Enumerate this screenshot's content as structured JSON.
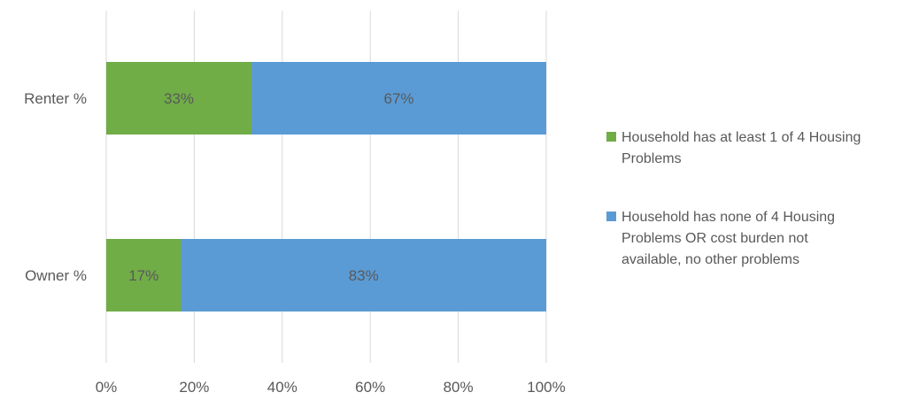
{
  "chart_data": {
    "type": "bar",
    "orientation": "horizontal",
    "stacked": true,
    "categories": [
      "Renter %",
      "Owner %"
    ],
    "series": [
      {
        "name": "Household has at least 1 of 4 Housing Problems",
        "name_lines": [
          "Household has at least 1 of 4 Housing",
          "Problems"
        ],
        "values": [
          33,
          17
        ],
        "data_labels": [
          "33%",
          "17%"
        ],
        "color": "#70ad47"
      },
      {
        "name": "Household has none of 4 Housing Problems OR cost burden not available, no other problems",
        "name_lines": [
          "Household has none of 4 Housing",
          "Problems OR cost burden not",
          "available, no other problems"
        ],
        "values": [
          67,
          83
        ],
        "data_labels": [
          "67%",
          "83%"
        ],
        "color": "#5b9bd5"
      }
    ],
    "x_ticks": [
      "0%",
      "20%",
      "40%",
      "60%",
      "80%",
      "100%"
    ],
    "xlim": [
      0,
      100
    ],
    "grid": "vertical",
    "legend_position": "right"
  }
}
